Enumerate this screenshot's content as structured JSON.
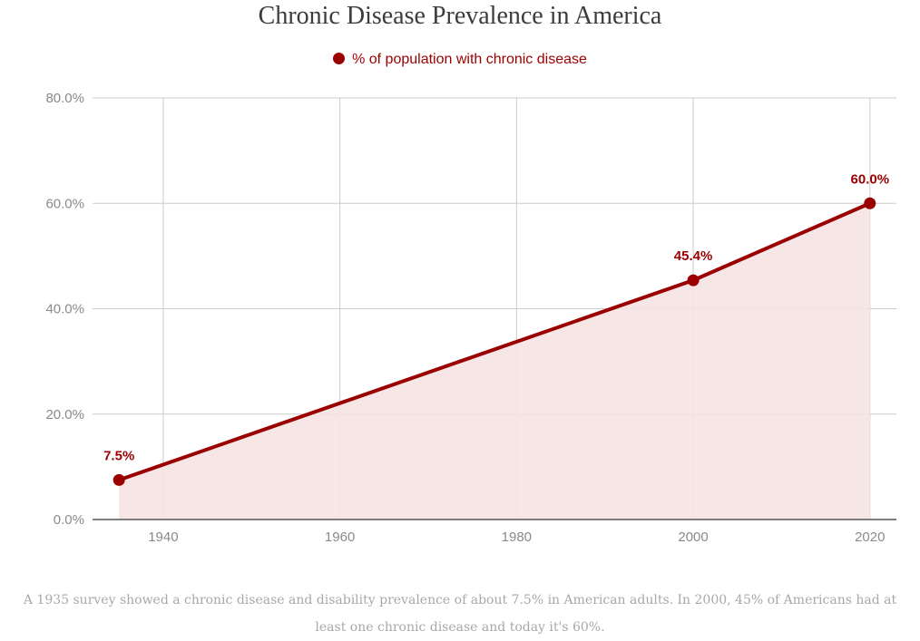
{
  "chart_data": {
    "type": "area",
    "title": "Chronic Disease Prevalence in America",
    "xlabel": "",
    "ylabel": "",
    "xlim": [
      1932,
      2023
    ],
    "ylim": [
      0,
      80
    ],
    "x_ticks": [
      1940,
      1960,
      1980,
      2000,
      2020
    ],
    "y_ticks": [
      0,
      20,
      40,
      60,
      80
    ],
    "y_tick_labels": [
      "0.0%",
      "20.0%",
      "40.0%",
      "60.0%",
      "80.0%"
    ],
    "grid": true,
    "legend_position": "top-center",
    "series": [
      {
        "name": "% of population with chronic disease",
        "color": "#9b0000",
        "fill_color": "#f5e3e3",
        "x": [
          1935,
          2000,
          2020
        ],
        "values": [
          7.5,
          45.4,
          60.0
        ],
        "data_labels": [
          "7.5%",
          "45.4%",
          "60.0%"
        ]
      }
    ]
  },
  "caption": "A 1935 survey showed a chronic disease and disability prevalence of about 7.5% in American adults. In 2000, 45% of Americans had at least one chronic disease and today it's 60%."
}
